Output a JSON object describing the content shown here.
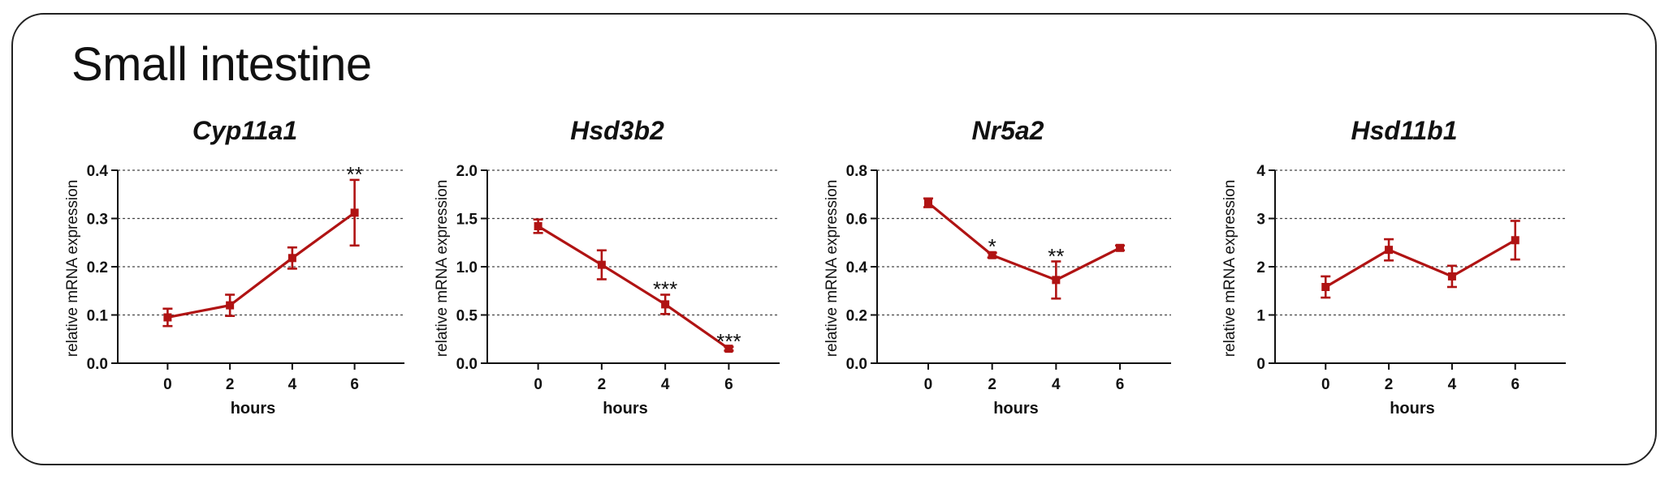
{
  "panel_title": "Small intestine",
  "colors": {
    "series": "#b01313",
    "axis": "#111111",
    "grid": "#444444",
    "frame": "#222222"
  },
  "chart_data": [
    {
      "type": "line",
      "title": "Cyp11a1",
      "xlabel": "hours",
      "ylabel": "relative mRNA expression",
      "x": [
        0,
        2,
        4,
        6
      ],
      "xlim": [
        -1.6,
        7.6
      ],
      "ylim": [
        0,
        0.4
      ],
      "yticks": [
        0,
        0.1,
        0.2,
        0.3,
        0.4
      ],
      "ytick_labels": [
        "0.0",
        "0.1",
        "0.2",
        "0.3",
        "0.4"
      ],
      "grid": true,
      "series": [
        {
          "name": "Cyp11a1",
          "values": [
            0.095,
            0.12,
            0.218,
            0.312
          ],
          "errors": [
            0.018,
            0.022,
            0.022,
            0.068
          ]
        }
      ],
      "annotations": [
        {
          "x": 6,
          "y": 0.38,
          "text": "**"
        }
      ]
    },
    {
      "type": "line",
      "title": "Hsd3b2",
      "xlabel": "hours",
      "ylabel": "relative mRNA expression",
      "x": [
        0,
        2,
        4,
        6
      ],
      "xlim": [
        -1.6,
        7.6
      ],
      "ylim": [
        0,
        2.0
      ],
      "yticks": [
        0,
        0.5,
        1.0,
        1.5,
        2.0
      ],
      "ytick_labels": [
        "0.0",
        "0.5",
        "1.0",
        "1.5",
        "2.0"
      ],
      "grid": true,
      "series": [
        {
          "name": "Hsd3b2",
          "values": [
            1.42,
            1.02,
            0.61,
            0.15
          ],
          "errors": [
            0.07,
            0.15,
            0.1,
            0.02
          ]
        }
      ],
      "annotations": [
        {
          "x": 4,
          "y": 0.71,
          "text": "***"
        },
        {
          "x": 6,
          "y": 0.17,
          "text": "***"
        }
      ]
    },
    {
      "type": "line",
      "title": "Nr5a2",
      "xlabel": "hours",
      "ylabel": "relative mRNA expression",
      "x": [
        0,
        2,
        4,
        6
      ],
      "xlim": [
        -1.6,
        7.6
      ],
      "ylim": [
        0,
        0.8
      ],
      "yticks": [
        0,
        0.2,
        0.4,
        0.6,
        0.8
      ],
      "ytick_labels": [
        "0.0",
        "0.2",
        "0.4",
        "0.6",
        "0.8"
      ],
      "grid": true,
      "series": [
        {
          "name": "Nr5a2",
          "values": [
            0.665,
            0.448,
            0.345,
            0.478
          ],
          "errors": [
            0.018,
            0.01,
            0.077,
            0.01
          ]
        }
      ],
      "annotations": [
        {
          "x": 2,
          "y": 0.46,
          "text": "*"
        },
        {
          "x": 4,
          "y": 0.42,
          "text": "**"
        }
      ]
    },
    {
      "type": "line",
      "title": "Hsd11b1",
      "xlabel": "hours",
      "ylabel": "relative mRNA expression",
      "x": [
        0,
        2,
        4,
        6
      ],
      "xlim": [
        -1.6,
        7.6
      ],
      "ylim": [
        0,
        4
      ],
      "yticks": [
        0,
        1,
        2,
        3,
        4
      ],
      "ytick_labels": [
        "0",
        "1",
        "2",
        "3",
        "4"
      ],
      "grid": true,
      "series": [
        {
          "name": "Hsd11b1",
          "values": [
            1.58,
            2.35,
            1.8,
            2.55
          ],
          "errors": [
            0.22,
            0.22,
            0.22,
            0.4
          ]
        }
      ],
      "annotations": []
    }
  ]
}
